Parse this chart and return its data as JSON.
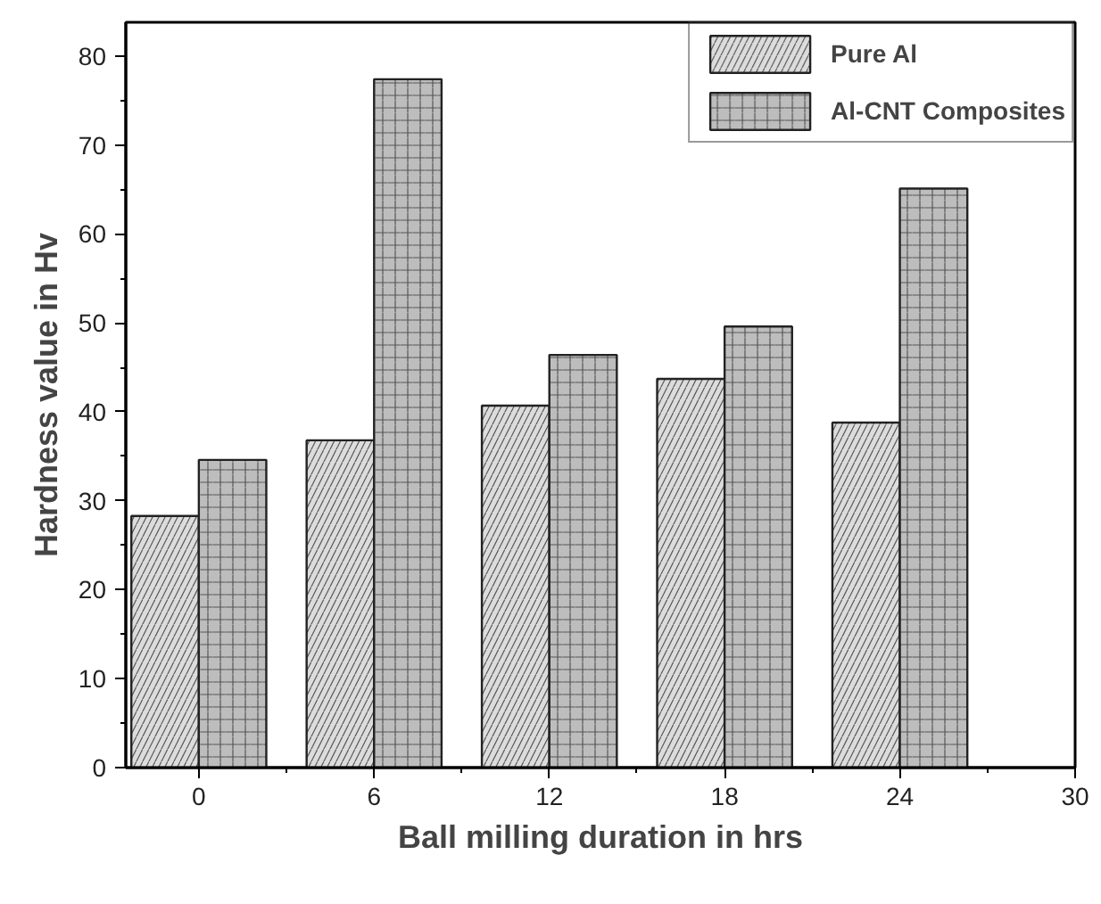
{
  "chart_data": {
    "type": "bar",
    "xlabel": "Ball milling duration in hrs",
    "ylabel": "Hardness value in Hv",
    "x": [
      0,
      6,
      12,
      18,
      24
    ],
    "series": [
      {
        "name": "Pure Al",
        "color": "#dcdcdc",
        "values": [
          28.3,
          36.8,
          40.7,
          43.7,
          38.8
        ]
      },
      {
        "name": "Al-CNT Composites",
        "color": "#bdbdbd",
        "values": [
          34.6,
          77.4,
          46.4,
          49.6,
          65.1
        ]
      }
    ],
    "xlim": [
      -2.5,
      30
    ],
    "xticks": [
      0,
      6,
      12,
      18,
      24,
      30
    ],
    "ylim": [
      0,
      83.8
    ],
    "yticks": [
      0,
      10,
      20,
      30,
      40,
      50,
      60,
      70,
      80
    ],
    "grid": false,
    "legend": "top right"
  }
}
